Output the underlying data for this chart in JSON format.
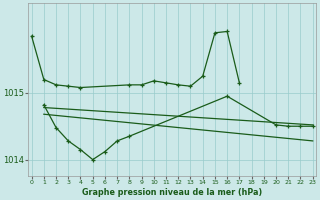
{
  "xlabel": "Graphe pression niveau de la mer (hPa)",
  "background_color": "#cce8e8",
  "line_color": "#1a5c1a",
  "grid_color": "#99cccc",
  "line1_x": [
    0,
    1,
    2,
    3,
    4,
    8,
    9,
    10,
    11,
    12,
    13,
    14,
    15,
    16,
    17
  ],
  "line1_y": [
    1015.85,
    1015.2,
    1015.12,
    1015.1,
    1015.08,
    1015.12,
    1015.12,
    1015.18,
    1015.15,
    1015.12,
    1015.1,
    1015.25,
    1015.9,
    1015.92,
    1015.15
  ],
  "line2_x": [
    1,
    2,
    3,
    4,
    5,
    6,
    7,
    8,
    16,
    20,
    21,
    22,
    23
  ],
  "line2_y": [
    1014.82,
    1014.48,
    1014.28,
    1014.15,
    1014.0,
    1014.12,
    1014.28,
    1014.35,
    1014.95,
    1014.52,
    1014.5,
    1014.5,
    1014.5
  ],
  "trend1_x": [
    1,
    23
  ],
  "trend1_y": [
    1014.78,
    1014.52
  ],
  "trend2_x": [
    1,
    23
  ],
  "trend2_y": [
    1014.68,
    1014.28
  ],
  "ylim": [
    1013.75,
    1016.35
  ],
  "yticks": [
    1014,
    1015
  ],
  "xlim": [
    -0.3,
    23.3
  ],
  "xticks": [
    0,
    1,
    2,
    3,
    4,
    5,
    6,
    7,
    8,
    9,
    10,
    11,
    12,
    13,
    14,
    15,
    16,
    17,
    18,
    19,
    20,
    21,
    22,
    23
  ]
}
